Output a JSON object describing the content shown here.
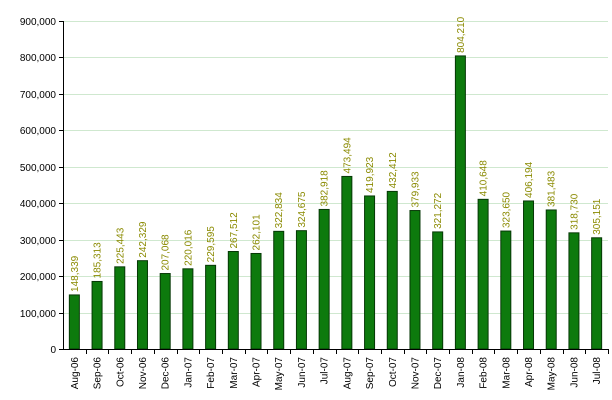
{
  "colors": {
    "bar_fill": "#0d7a0d",
    "bar_stroke": "#063806",
    "data_label": "#8a8a00",
    "grid": "#cfe8cf",
    "axis": "#000000"
  },
  "chart_data": {
    "type": "bar",
    "categories": [
      "Aug-06",
      "Sep-06",
      "Oct-06",
      "Nov-06",
      "Dec-06",
      "Jan-07",
      "Feb-07",
      "Mar-07",
      "Apr-07",
      "May-07",
      "Jun-07",
      "Jul-07",
      "Aug-07",
      "Sep-07",
      "Oct-07",
      "Nov-07",
      "Dec-07",
      "Jan-08",
      "Feb-08",
      "Mar-08",
      "Apr-08",
      "May-08",
      "Jun-08",
      "Jul-08"
    ],
    "values": [
      148339,
      185313,
      225443,
      242329,
      207068,
      220016,
      229595,
      267512,
      262101,
      322834,
      324675,
      382918,
      473494,
      419923,
      432412,
      379933,
      321272,
      804210,
      410648,
      323650,
      406194,
      381483,
      318730,
      305151
    ],
    "value_labels": [
      "148,339",
      "185,313",
      "225,443",
      "242,329",
      "207,068",
      "220,016",
      "229,595",
      "267,512",
      "262,101",
      "322,834",
      "324,675",
      "382,918",
      "473,494",
      "419,923",
      "432,412",
      "379,933",
      "321,272",
      "804,210",
      "410,648",
      "323,650",
      "406,194",
      "381,483",
      "318,730",
      "305,151"
    ],
    "y_ticks": [
      "0",
      "100,000",
      "200,000",
      "300,000",
      "400,000",
      "500,000",
      "600,000",
      "700,000",
      "800,000",
      "900,000"
    ],
    "ylim": [
      0,
      900000
    ],
    "grid": true,
    "legend": "none",
    "title": "",
    "xlabel": "",
    "ylabel": ""
  }
}
